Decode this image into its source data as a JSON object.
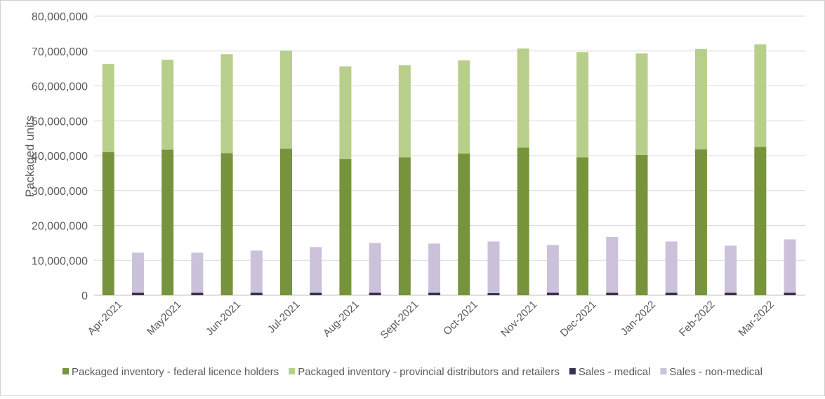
{
  "chart_data": {
    "type": "bar",
    "ylabel": "Packaged units",
    "xlabel": "",
    "ylim": [
      0,
      80000000
    ],
    "ytick_step": 10000000,
    "ytick_labels": [
      "0",
      "10,000,000",
      "20,000,000",
      "30,000,000",
      "40,000,000",
      "50,000,000",
      "60,000,000",
      "70,000,000",
      "80,000,000"
    ],
    "grid": true,
    "legend_position": "bottom",
    "categories": [
      "Apr-2021",
      "May2021",
      "Jun-2021",
      "Jul-2021",
      "Aug-2021",
      "Sept-2021",
      "Oct-2021",
      "Nov-2021",
      "Dec-2021",
      "Jan-2022",
      "Feb-2022",
      "Mar-2022"
    ],
    "stacks": [
      {
        "name": "inventory",
        "series": [
          {
            "name": "Packaged inventory - federal licence holders",
            "color": "#77933c",
            "values": [
              41000000,
              41700000,
              40700000,
              42000000,
              39000000,
              39500000,
              40600000,
              42300000,
              39500000,
              40200000,
              41800000,
              42500000
            ]
          },
          {
            "name": "Packaged inventory - provincial distributors and retailers",
            "color": "#b7cf8b",
            "values": [
              25300000,
              25800000,
              28400000,
              28100000,
              26600000,
              26400000,
              26700000,
              28400000,
              30200000,
              29100000,
              28800000,
              29400000
            ]
          }
        ]
      },
      {
        "name": "sales",
        "series": [
          {
            "name": "Sales - medical",
            "color": "#3b2f4f",
            "values": [
              700000,
              700000,
              700000,
              700000,
              700000,
              700000,
              600000,
              700000,
              700000,
              700000,
              700000,
              700000
            ]
          },
          {
            "name": "Sales - non-medical",
            "color": "#ccc1da",
            "values": [
              11500000,
              11500000,
              12100000,
              13100000,
              14300000,
              14100000,
              14800000,
              13700000,
              16000000,
              14700000,
              13500000,
              15300000
            ]
          }
        ]
      }
    ],
    "legend": [
      "Packaged inventory - federal licence holders",
      "Packaged inventory - provincial distributors and retailers",
      "Sales - medical",
      "Sales - non-medical"
    ]
  }
}
